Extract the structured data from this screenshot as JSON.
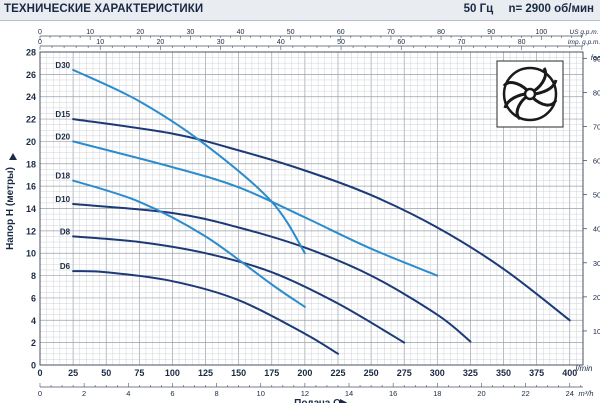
{
  "header": {
    "title": "ТЕХНИЧЕСКИЕ ХАРАКТЕРИСТИКИ",
    "frequency": "50 Гц",
    "speed": "n= 2900 об/мин"
  },
  "colors": {
    "dark_series": "#1c3a78",
    "light_series": "#2c8ccd",
    "grid_minor": "#c3c8cf",
    "grid_major": "#9aa1ab",
    "axis_text": "#1a2a44"
  },
  "icons": [
    "impeller-icon"
  ],
  "chart_data": {
    "type": "line",
    "xlabel": "Подача Q",
    "ylabel": "Напор H (метры)",
    "ylabel_right": "feet",
    "x_unit": "l/min",
    "x_unit_bottom": "m³/h",
    "x_unit_top1": "US g.p.m.",
    "x_unit_top2": "Imp. g.p.m.",
    "xlim": [
      0,
      410
    ],
    "ylim": [
      0,
      28
    ],
    "x_ticks": [
      "0",
      "25",
      "50",
      "75",
      "100",
      "125",
      "150",
      "175",
      "200",
      "225",
      "250",
      "275",
      "300",
      "325",
      "350",
      "375",
      "400"
    ],
    "y_ticks": [
      "0",
      "2",
      "4",
      "6",
      "8",
      "10",
      "12",
      "14",
      "16",
      "18",
      "20",
      "22",
      "24",
      "26",
      "28"
    ],
    "bottom_ticks": [
      "0",
      "2",
      "4",
      "6",
      "8",
      "10",
      "12",
      "14",
      "16",
      "18",
      "20",
      "22",
      "24"
    ],
    "top_ticks_us": [
      "0",
      "10",
      "20",
      "30",
      "40",
      "50",
      "60",
      "70",
      "80",
      "90",
      "100"
    ],
    "top_ticks_imp": [
      "0",
      "10",
      "20",
      "30",
      "40",
      "50",
      "60",
      "70",
      "80"
    ],
    "right_ticks": [
      "10",
      "20",
      "30",
      "40",
      "50",
      "60",
      "70",
      "80",
      "90"
    ],
    "grid": true,
    "series": [
      {
        "name": "D6",
        "color": "dark",
        "x": [
          25,
          50,
          100,
          150,
          200,
          225
        ],
        "y": [
          8.4,
          8.3,
          7.5,
          5.8,
          2.8,
          1.0
        ]
      },
      {
        "name": "D8",
        "color": "dark",
        "x": [
          25,
          75,
          125,
          175,
          225,
          275
        ],
        "y": [
          11.5,
          11.0,
          10.0,
          8.3,
          5.5,
          2.0
        ]
      },
      {
        "name": "D10",
        "color": "dark",
        "x": [
          25,
          100,
          150,
          200,
          250,
          300,
          325
        ],
        "y": [
          14.4,
          13.6,
          12.3,
          10.5,
          8.0,
          4.5,
          2.1
        ]
      },
      {
        "name": "D15",
        "color": "dark",
        "x": [
          25,
          100,
          150,
          200,
          250,
          300,
          350,
          400
        ],
        "y": [
          22.0,
          20.7,
          19.2,
          17.4,
          15.2,
          12.3,
          8.6,
          4.0
        ]
      },
      {
        "name": "D18",
        "color": "light",
        "x": [
          25,
          75,
          125,
          175,
          200
        ],
        "y": [
          16.5,
          14.6,
          11.5,
          7.2,
          5.2
        ]
      },
      {
        "name": "D20",
        "color": "light",
        "x": [
          25,
          100,
          150,
          200,
          250,
          300
        ],
        "y": [
          20.0,
          17.7,
          15.9,
          13.2,
          10.4,
          8.0
        ]
      },
      {
        "name": "D30",
        "color": "light",
        "x": [
          25,
          75,
          125,
          175,
          200
        ],
        "y": [
          26.4,
          23.6,
          19.7,
          14.6,
          10.0
        ]
      }
    ]
  }
}
